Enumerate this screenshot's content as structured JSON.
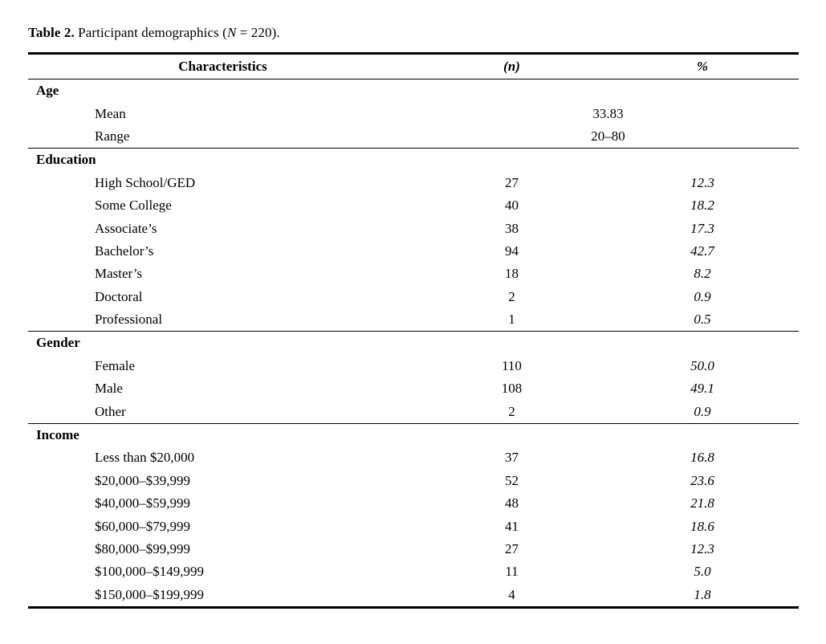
{
  "page": {
    "title": {
      "prefix": "Table 2.",
      "body": " Participant demographics (",
      "n_symbol": "N",
      "suffix": " = 220)."
    }
  },
  "table": {
    "headers": {
      "characteristics": "Characteristics",
      "n": "(n)",
      "percent": "%"
    },
    "sections": [
      {
        "name": "Age",
        "rows": [
          {
            "label": "Mean",
            "span_value": "33.83"
          },
          {
            "label": "Range",
            "span_value": "20–80"
          }
        ]
      },
      {
        "name": "Education",
        "rows": [
          {
            "label": "High School/GED",
            "n": "27",
            "percent": "12.3"
          },
          {
            "label": "Some College",
            "n": "40",
            "percent": "18.2"
          },
          {
            "label": "Associate’s",
            "n": "38",
            "percent": "17.3"
          },
          {
            "label": "Bachelor’s",
            "n": "94",
            "percent": "42.7"
          },
          {
            "label": "Master’s",
            "n": "18",
            "percent": "8.2"
          },
          {
            "label": "Doctoral",
            "n": "2",
            "percent": "0.9"
          },
          {
            "label": "Professional",
            "n": "1",
            "percent": "0.5"
          }
        ]
      },
      {
        "name": "Gender",
        "rows": [
          {
            "label": "Female",
            "n": "110",
            "percent": "50.0"
          },
          {
            "label": "Male",
            "n": "108",
            "percent": "49.1"
          },
          {
            "label": "Other",
            "n": "2",
            "percent": "0.9"
          }
        ]
      },
      {
        "name": "Income",
        "rows": [
          {
            "label": "Less than $20,000",
            "n": "37",
            "percent": "16.8"
          },
          {
            "label": "$20,000–$39,999",
            "n": "52",
            "percent": "23.6"
          },
          {
            "label": "$40,000–$59,999",
            "n": "48",
            "percent": "21.8"
          },
          {
            "label": "$60,000–$79,999",
            "n": "41",
            "percent": "18.6"
          },
          {
            "label": "$80,000–$99,999",
            "n": "27",
            "percent": "12.3"
          },
          {
            "label": "$100,000–$149,999",
            "n": "11",
            "percent": "5.0"
          },
          {
            "label": "$150,000–$199,999",
            "n": "4",
            "percent": "1.8"
          }
        ]
      }
    ]
  }
}
